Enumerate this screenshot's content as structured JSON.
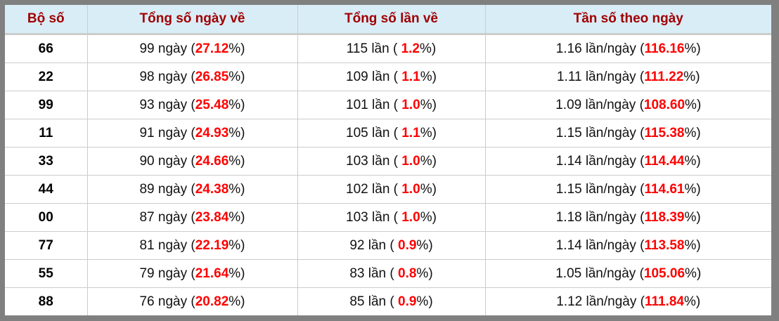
{
  "headers": [
    "Bộ số",
    "Tổng số ngày về",
    "Tổng số lần về",
    "Tần số theo ngày"
  ],
  "rows": [
    [
      "66",
      "99 ngày",
      "27.12",
      "115 lần",
      "1.2",
      "1.16 lần/ngày",
      "116.16"
    ],
    [
      "22",
      "98 ngày",
      "26.85",
      "109 lần",
      "1.1",
      "1.11 lần/ngày",
      "111.22"
    ],
    [
      "99",
      "93 ngày",
      "25.48",
      "101 lần",
      "1.0",
      "1.09 lần/ngày",
      "108.60"
    ],
    [
      "11",
      "91 ngày",
      "24.93",
      "105 lần",
      "1.1",
      "1.15 lần/ngày",
      "115.38"
    ],
    [
      "33",
      "90 ngày",
      "24.66",
      "103 lần",
      "1.0",
      "1.14 lần/ngày",
      "114.44"
    ],
    [
      "44",
      "89 ngày",
      "24.38",
      "102 lần",
      "1.0",
      "1.15 lần/ngày",
      "114.61"
    ],
    [
      "00",
      "87 ngày",
      "23.84",
      "103 lần",
      "1.0",
      "1.18 lần/ngày",
      "118.39"
    ],
    [
      "77",
      "81 ngày",
      "22.19",
      "92 lần",
      "0.9",
      "1.14 lần/ngày",
      "113.58"
    ],
    [
      "55",
      "79 ngày",
      "21.64",
      "83 lần",
      "0.8",
      "1.05 lần/ngày",
      "105.06"
    ],
    [
      "88",
      "76 ngày",
      "20.82",
      "85 lần",
      "0.9",
      "1.12 lần/ngày",
      "111.84"
    ]
  ],
  "colors": {
    "header_bg": "#d9edf7",
    "header_text": "#a00000",
    "highlight": "#ff0000",
    "frame": "#808080"
  }
}
